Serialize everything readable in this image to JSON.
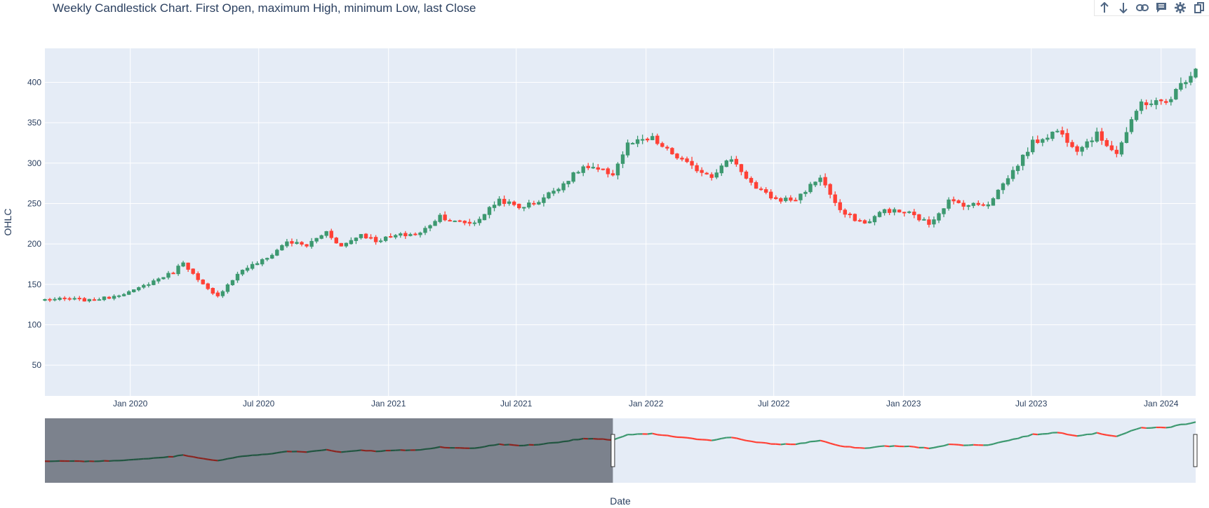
{
  "colors": {
    "plot_bg": "#e5ecf6",
    "grid": "#ffffff",
    "increasing": "#3d9970",
    "decreasing": "#ff4136",
    "rangeslider_mask": "#8a8d92",
    "text": "#2a3f5f"
  },
  "modebar": {
    "icons": [
      "arrow-up-icon",
      "arrow-down-icon",
      "link-icon",
      "comment-icon",
      "gear-icon",
      "copy-icon"
    ]
  },
  "chart_data": {
    "type": "candlestick",
    "title": "Weekly Candlestick Chart. First Open, maximum High, minimum Low, last Close",
    "xlabel": "Date",
    "ylabel": "OHLC",
    "ylim": [
      12,
      442
    ],
    "xlim": [
      "2019-09-02",
      "2024-02-19"
    ],
    "y_ticks": [
      50,
      100,
      150,
      200,
      250,
      300,
      350,
      400
    ],
    "x_ticks": [
      {
        "date": "2020-01-01",
        "label": "Jan 2020"
      },
      {
        "date": "2020-07-01",
        "label": "Jul 2020"
      },
      {
        "date": "2021-01-01",
        "label": "Jan 2021"
      },
      {
        "date": "2021-07-01",
        "label": "Jul 2021"
      },
      {
        "date": "2022-01-01",
        "label": "Jan 2022"
      },
      {
        "date": "2022-07-01",
        "label": "Jul 2022"
      },
      {
        "date": "2023-01-01",
        "label": "Jan 2023"
      },
      {
        "date": "2023-07-01",
        "label": "Jul 2023"
      },
      {
        "date": "2024-01-01",
        "label": "Jan 2024"
      }
    ],
    "grid": true,
    "frequency": "weekly",
    "rangeslider": {
      "visible": true,
      "masked_until": "2021-11-15"
    },
    "close_anchors": [
      [
        "2019-09-02",
        131
      ],
      [
        "2019-10-07",
        132
      ],
      [
        "2019-11-04",
        130
      ],
      [
        "2019-12-02",
        134
      ],
      [
        "2020-01-06",
        142
      ],
      [
        "2020-02-03",
        154
      ],
      [
        "2020-03-02",
        165
      ],
      [
        "2020-03-16",
        178
      ],
      [
        "2020-04-06",
        155
      ],
      [
        "2020-04-27",
        138
      ],
      [
        "2020-05-04",
        135
      ],
      [
        "2020-05-18",
        150
      ],
      [
        "2020-06-08",
        168
      ],
      [
        "2020-07-13",
        182
      ],
      [
        "2020-08-10",
        203
      ],
      [
        "2020-09-07",
        198
      ],
      [
        "2020-10-05",
        215
      ],
      [
        "2020-10-26",
        197
      ],
      [
        "2020-11-23",
        212
      ],
      [
        "2020-12-14",
        204
      ],
      [
        "2021-01-11",
        210
      ],
      [
        "2021-02-15",
        213
      ],
      [
        "2021-03-15",
        235
      ],
      [
        "2021-04-05",
        227
      ],
      [
        "2021-05-03",
        226
      ],
      [
        "2021-06-07",
        255
      ],
      [
        "2021-07-05",
        245
      ],
      [
        "2021-08-02",
        253
      ],
      [
        "2021-09-06",
        275
      ],
      [
        "2021-10-04",
        295
      ],
      [
        "2021-11-15",
        287
      ],
      [
        "2021-12-06",
        323
      ],
      [
        "2022-01-10",
        330
      ],
      [
        "2022-01-24",
        320
      ],
      [
        "2022-03-07",
        295
      ],
      [
        "2022-04-04",
        285
      ],
      [
        "2022-05-02",
        306
      ],
      [
        "2022-06-06",
        268
      ],
      [
        "2022-07-04",
        255
      ],
      [
        "2022-08-01",
        255
      ],
      [
        "2022-09-05",
        283
      ],
      [
        "2022-10-03",
        240
      ],
      [
        "2022-11-07",
        225
      ],
      [
        "2022-12-05",
        242
      ],
      [
        "2023-01-09",
        238
      ],
      [
        "2023-02-06",
        225
      ],
      [
        "2023-03-06",
        253
      ],
      [
        "2023-04-03",
        248
      ],
      [
        "2023-05-01",
        250
      ],
      [
        "2023-06-05",
        290
      ],
      [
        "2023-07-03",
        325
      ],
      [
        "2023-08-07",
        340
      ],
      [
        "2023-09-04",
        318
      ],
      [
        "2023-10-02",
        335
      ],
      [
        "2023-10-30",
        313
      ],
      [
        "2023-12-04",
        375
      ],
      [
        "2024-01-08",
        375
      ],
      [
        "2024-02-19",
        418
      ]
    ]
  }
}
